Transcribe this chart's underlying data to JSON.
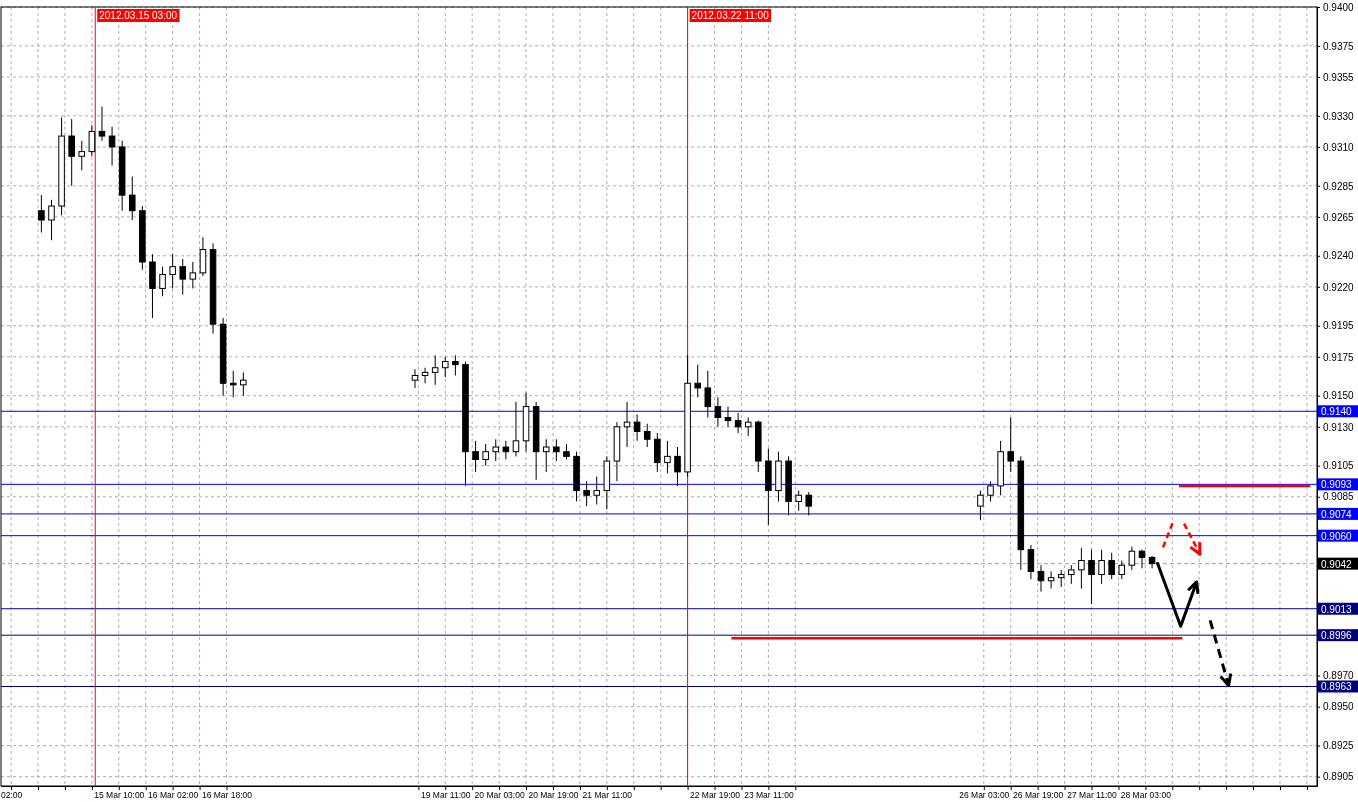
{
  "chart_data": {
    "type": "candlestick",
    "x": [
      "2012-03-14T11:00",
      "2012-03-14T14:00",
      "2012-03-14T17:00",
      "2012-03-14T20:00",
      "2012-03-14T23:00",
      "2012-03-15T02:00",
      "2012-03-15T05:00",
      "2012-03-15T08:00",
      "2012-03-15T11:00",
      "2012-03-15T14:00",
      "2012-03-15T17:00",
      "2012-03-15T20:00",
      "2012-03-15T23:00",
      "2012-03-16T02:00",
      "2012-03-16T05:00",
      "2012-03-16T08:00",
      "2012-03-16T11:00",
      "2012-03-16T14:00",
      "2012-03-16T17:00",
      "2012-03-16T20:00",
      "2012-03-16T23:00",
      "2012-03-19T02:00",
      "2012-03-19T05:00",
      "2012-03-19T08:00",
      "2012-03-19T11:00",
      "2012-03-19T14:00",
      "2012-03-19T17:00",
      "2012-03-19T20:00",
      "2012-03-19T23:00",
      "2012-03-20T02:00",
      "2012-03-20T05:00",
      "2012-03-20T08:00",
      "2012-03-20T11:00",
      "2012-03-20T14:00",
      "2012-03-20T17:00",
      "2012-03-20T20:00",
      "2012-03-20T23:00",
      "2012-03-21T02:00",
      "2012-03-21T05:00",
      "2012-03-21T08:00",
      "2012-03-21T11:00",
      "2012-03-21T14:00",
      "2012-03-21T17:00",
      "2012-03-21T20:00",
      "2012-03-21T23:00",
      "2012-03-22T02:00",
      "2012-03-22T05:00",
      "2012-03-22T08:00",
      "2012-03-22T11:00",
      "2012-03-22T14:00",
      "2012-03-22T17:00",
      "2012-03-22T20:00",
      "2012-03-22T23:00",
      "2012-03-23T02:00",
      "2012-03-23T05:00",
      "2012-03-23T08:00",
      "2012-03-23T11:00",
      "2012-03-23T14:00",
      "2012-03-23T17:00",
      "2012-03-23T20:00",
      "2012-03-23T23:00",
      "2012-03-26T02:00",
      "2012-03-26T05:00",
      "2012-03-26T08:00",
      "2012-03-26T11:00",
      "2012-03-26T14:00",
      "2012-03-26T17:00",
      "2012-03-26T20:00",
      "2012-03-26T23:00",
      "2012-03-27T02:00",
      "2012-03-27T05:00",
      "2012-03-27T08:00",
      "2012-03-27T11:00",
      "2012-03-27T14:00",
      "2012-03-27T17:00",
      "2012-03-27T20:00",
      "2012-03-27T23:00",
      "2012-03-28T02:00",
      "2012-03-28T05:00"
    ],
    "ohlc": [
      [
        0.9269,
        0.9279,
        0.9255,
        0.9263
      ],
      [
        0.9263,
        0.9276,
        0.925,
        0.9272
      ],
      [
        0.9272,
        0.9329,
        0.9266,
        0.9317
      ],
      [
        0.9317,
        0.9328,
        0.9285,
        0.9304
      ],
      [
        0.9304,
        0.9314,
        0.9295,
        0.9307
      ],
      [
        0.9307,
        0.9324,
        0.9304,
        0.932
      ],
      [
        0.932,
        0.9336,
        0.9314,
        0.9317
      ],
      [
        0.9317,
        0.9323,
        0.9298,
        0.931
      ],
      [
        0.931,
        0.9314,
        0.9269,
        0.9279
      ],
      [
        0.9279,
        0.9291,
        0.9263,
        0.9269
      ],
      [
        0.9269,
        0.9272,
        0.9231,
        0.9236
      ],
      [
        0.9236,
        0.9241,
        0.92,
        0.9219
      ],
      [
        0.9219,
        0.9233,
        0.9214,
        0.9228
      ],
      [
        0.9228,
        0.9241,
        0.9219,
        0.9233
      ],
      [
        0.9233,
        0.9238,
        0.9215,
        0.9225
      ],
      [
        0.9225,
        0.9236,
        0.9219,
        0.9229
      ],
      [
        0.9229,
        0.9252,
        0.9227,
        0.9244
      ],
      [
        0.9244,
        0.9248,
        0.919,
        0.9196
      ],
      [
        0.9196,
        0.92,
        0.915,
        0.9158
      ],
      [
        0.9158,
        0.9166,
        0.9149,
        0.9157
      ],
      [
        0.9157,
        0.9165,
        0.915,
        0.916
      ],
      [
        0.916,
        0.9167,
        0.9155,
        0.9163
      ],
      [
        0.9163,
        0.9168,
        0.9158,
        0.9165
      ],
      [
        0.9165,
        0.9176,
        0.9157,
        0.9168
      ],
      [
        0.9168,
        0.9175,
        0.9162,
        0.9172
      ],
      [
        0.9172,
        0.9176,
        0.9163,
        0.917
      ],
      [
        0.917,
        0.9172,
        0.9092,
        0.9114
      ],
      [
        0.9114,
        0.9121,
        0.9101,
        0.9109
      ],
      [
        0.9109,
        0.9119,
        0.9105,
        0.9114
      ],
      [
        0.9114,
        0.9122,
        0.9108,
        0.9117
      ],
      [
        0.9117,
        0.9121,
        0.9109,
        0.9114
      ],
      [
        0.9114,
        0.9146,
        0.9111,
        0.9121
      ],
      [
        0.9121,
        0.9152,
        0.9114,
        0.9143
      ],
      [
        0.9143,
        0.9146,
        0.9096,
        0.9114
      ],
      [
        0.9114,
        0.9122,
        0.9101,
        0.9117
      ],
      [
        0.9117,
        0.9122,
        0.9108,
        0.9114
      ],
      [
        0.9114,
        0.9119,
        0.9109,
        0.9111
      ],
      [
        0.9111,
        0.9114,
        0.9082,
        0.9089
      ],
      [
        0.9089,
        0.9095,
        0.9079,
        0.9086
      ],
      [
        0.9086,
        0.9098,
        0.908,
        0.9089
      ],
      [
        0.9089,
        0.9111,
        0.9077,
        0.9108
      ],
      [
        0.9108,
        0.9133,
        0.9095,
        0.913
      ],
      [
        0.913,
        0.9146,
        0.9117,
        0.9133
      ],
      [
        0.9133,
        0.9138,
        0.9121,
        0.9127
      ],
      [
        0.9127,
        0.9132,
        0.9117,
        0.9122
      ],
      [
        0.9122,
        0.9126,
        0.9101,
        0.9107
      ],
      [
        0.9107,
        0.9121,
        0.91,
        0.9111
      ],
      [
        0.9111,
        0.9117,
        0.9092,
        0.9101
      ],
      [
        0.9101,
        0.9176,
        0.9098,
        0.9158
      ],
      [
        0.9158,
        0.917,
        0.9149,
        0.9155
      ],
      [
        0.9155,
        0.9166,
        0.9136,
        0.9143
      ],
      [
        0.9143,
        0.9149,
        0.913,
        0.9136
      ],
      [
        0.9136,
        0.9143,
        0.913,
        0.9134
      ],
      [
        0.9134,
        0.9139,
        0.9126,
        0.913
      ],
      [
        0.913,
        0.9136,
        0.9124,
        0.9133
      ],
      [
        0.9133,
        0.9134,
        0.9101,
        0.9108
      ],
      [
        0.9108,
        0.9116,
        0.9067,
        0.9089
      ],
      [
        0.9089,
        0.9114,
        0.9082,
        0.9108
      ],
      [
        0.9108,
        0.9111,
        0.9073,
        0.9082
      ],
      [
        0.9082,
        0.9089,
        0.9076,
        0.9086
      ],
      [
        0.9086,
        0.9088,
        0.9073,
        0.9079
      ],
      [
        0.9079,
        0.9089,
        0.907,
        0.9086
      ],
      [
        0.9086,
        0.9095,
        0.9082,
        0.9092
      ],
      [
        0.9092,
        0.9121,
        0.9086,
        0.9114
      ],
      [
        0.9114,
        0.9136,
        0.9101,
        0.9108
      ],
      [
        0.9108,
        0.9111,
        0.9038,
        0.9051
      ],
      [
        0.9051,
        0.9054,
        0.9032,
        0.9037
      ],
      [
        0.9037,
        0.9041,
        0.9024,
        0.9031
      ],
      [
        0.9031,
        0.9037,
        0.9026,
        0.9033
      ],
      [
        0.9033,
        0.9038,
        0.9027,
        0.9035
      ],
      [
        0.9035,
        0.9041,
        0.9029,
        0.9038
      ],
      [
        0.9038,
        0.9052,
        0.9026,
        0.9044
      ],
      [
        0.9044,
        0.9051,
        0.9016,
        0.9035
      ],
      [
        0.9035,
        0.9051,
        0.9029,
        0.9044
      ],
      [
        0.9044,
        0.9049,
        0.9032,
        0.9035
      ],
      [
        0.9035,
        0.9044,
        0.9032,
        0.9041
      ],
      [
        0.9041,
        0.9053,
        0.9038,
        0.905
      ],
      [
        0.905,
        0.9051,
        0.9039,
        0.9046
      ],
      [
        0.9046,
        0.9047,
        0.9039,
        0.9042
      ]
    ],
    "series": [
      {
        "type": "line",
        "x": [
          "2012-03-28T13:00",
          "2012-03-30T04:00"
        ],
        "values": [
          0.9092,
          0.9092
        ],
        "color": "#ff0000"
      },
      {
        "type": "line",
        "x": [
          "2012-03-23T00:00",
          "2012-03-28T14:00"
        ],
        "values": [
          0.8994,
          0.8994
        ],
        "color": "#ff0000"
      }
    ],
    "xlim": [
      "2012-03-13T23:00",
      "2012-03-30T06:00"
    ],
    "xticks": [
      {
        "value": "2012-03-14T02:00",
        "label": "02:00"
      },
      {
        "value": "2012-03-14T10:00",
        "label": null
      },
      {
        "value": "2012-03-14T18:00",
        "label": null
      },
      {
        "value": "2012-03-15T02:00",
        "label": null
      },
      {
        "value": "2012-03-15T10:00",
        "label": "15 Mar 10:00"
      },
      {
        "value": "2012-03-15T18:00",
        "label": null
      },
      {
        "value": "2012-03-16T02:00",
        "label": "16 Mar 02:00"
      },
      {
        "value": "2012-03-16T10:00",
        "label": null
      },
      {
        "value": "2012-03-16T18:00",
        "label": "16 Mar 18:00"
      },
      {
        "value": "2012-03-19T03:00",
        "label": null
      },
      {
        "value": "2012-03-19T11:00",
        "label": "19 Mar 11:00"
      },
      {
        "value": "2012-03-19T19:00",
        "label": null
      },
      {
        "value": "2012-03-20T03:00",
        "label": "20 Mar 03:00"
      },
      {
        "value": "2012-03-20T11:00",
        "label": null
      },
      {
        "value": "2012-03-20T19:00",
        "label": "20 Mar 19:00"
      },
      {
        "value": "2012-03-21T03:00",
        "label": null
      },
      {
        "value": "2012-03-21T11:00",
        "label": "21 Mar 11:00"
      },
      {
        "value": "2012-03-21T19:00",
        "label": null
      },
      {
        "value": "2012-03-22T03:00",
        "label": null
      },
      {
        "value": "2012-03-22T11:00",
        "label": null
      },
      {
        "value": "2012-03-22T19:00",
        "label": "22 Mar 19:00"
      },
      {
        "value": "2012-03-23T03:00",
        "label": null
      },
      {
        "value": "2012-03-23T11:00",
        "label": "23 Mar 11:00"
      },
      {
        "value": "2012-03-23T19:00",
        "label": null
      },
      {
        "value": "2012-03-26T03:00",
        "label": "26 Mar 03:00"
      },
      {
        "value": "2012-03-26T11:00",
        "label": null
      },
      {
        "value": "2012-03-26T19:00",
        "label": "26 Mar 19:00"
      },
      {
        "value": "2012-03-27T03:00",
        "label": null
      },
      {
        "value": "2012-03-27T11:00",
        "label": "27 Mar 11:00"
      },
      {
        "value": "2012-03-27T19:00",
        "label": null
      },
      {
        "value": "2012-03-28T03:00",
        "label": "28 Mar 03:00"
      },
      {
        "value": "2012-03-28T11:00",
        "label": null
      },
      {
        "value": "2012-03-28T19:00",
        "label": null
      },
      {
        "value": "2012-03-29T03:00",
        "label": null
      },
      {
        "value": "2012-03-29T11:00",
        "label": null
      },
      {
        "value": "2012-03-29T19:00",
        "label": null
      },
      {
        "value": "2012-03-30T03:00",
        "label": null
      }
    ],
    "ylim": [
      0.8899,
      0.94
    ],
    "yticks": [
      {
        "value": 0.94,
        "label": "0.9400"
      },
      {
        "value": 0.9375,
        "label": "0.9375"
      },
      {
        "value": 0.9355,
        "label": "0.9355"
      },
      {
        "value": 0.933,
        "label": "0.9330"
      },
      {
        "value": 0.931,
        "label": "0.9310"
      },
      {
        "value": 0.9285,
        "label": "0.9285"
      },
      {
        "value": 0.9265,
        "label": "0.9265"
      },
      {
        "value": 0.924,
        "label": "0.9240"
      },
      {
        "value": 0.922,
        "label": "0.9220"
      },
      {
        "value": 0.9195,
        "label": "0.9195"
      },
      {
        "value": 0.9175,
        "label": "0.9175"
      },
      {
        "value": 0.915,
        "label": "0.9150"
      },
      {
        "value": 0.913,
        "label": "0.9130"
      },
      {
        "value": 0.9105,
        "label": "0.9105"
      },
      {
        "value": 0.9085,
        "label": "0.9085"
      },
      {
        "value": 0.897,
        "label": "0.8970"
      },
      {
        "value": 0.895,
        "label": "0.8950"
      },
      {
        "value": 0.8925,
        "label": "0.8925"
      },
      {
        "value": 0.8905,
        "label": "0.8905"
      }
    ],
    "grid": true,
    "ref_lines": [
      {
        "axis": "y",
        "value": 0.914,
        "label": "0.9140",
        "color": "#0000ff"
      },
      {
        "axis": "y",
        "value": 0.9093,
        "label": "0.9093",
        "color": "#0000ff"
      },
      {
        "axis": "y",
        "value": 0.9074,
        "label": "0.9074",
        "color": "#0000ff"
      },
      {
        "axis": "y",
        "value": 0.906,
        "label": "0.9060",
        "color": "#0000ff"
      },
      {
        "axis": "y",
        "value": 0.9042,
        "label": "0.9042",
        "color": "#a0a0a0",
        "line_style": "dashed"
      },
      {
        "axis": "y",
        "value": 0.9013,
        "label": "0.9013",
        "color": "#000080"
      },
      {
        "axis": "y",
        "value": 0.8996,
        "label": "0.8996",
        "color": "#000080"
      },
      {
        "axis": "y",
        "value": 0.8963,
        "label": "0.8963",
        "color": "#000080"
      },
      {
        "axis": "x",
        "value": "2012-03-15T03:00",
        "label": "2012.03.15 03:00",
        "color": "#ff0000"
      },
      {
        "axis": "x",
        "value": "2012-03-22T11:00",
        "label": "2012.03.22 11:00",
        "color": "#ff0000"
      }
    ]
  }
}
